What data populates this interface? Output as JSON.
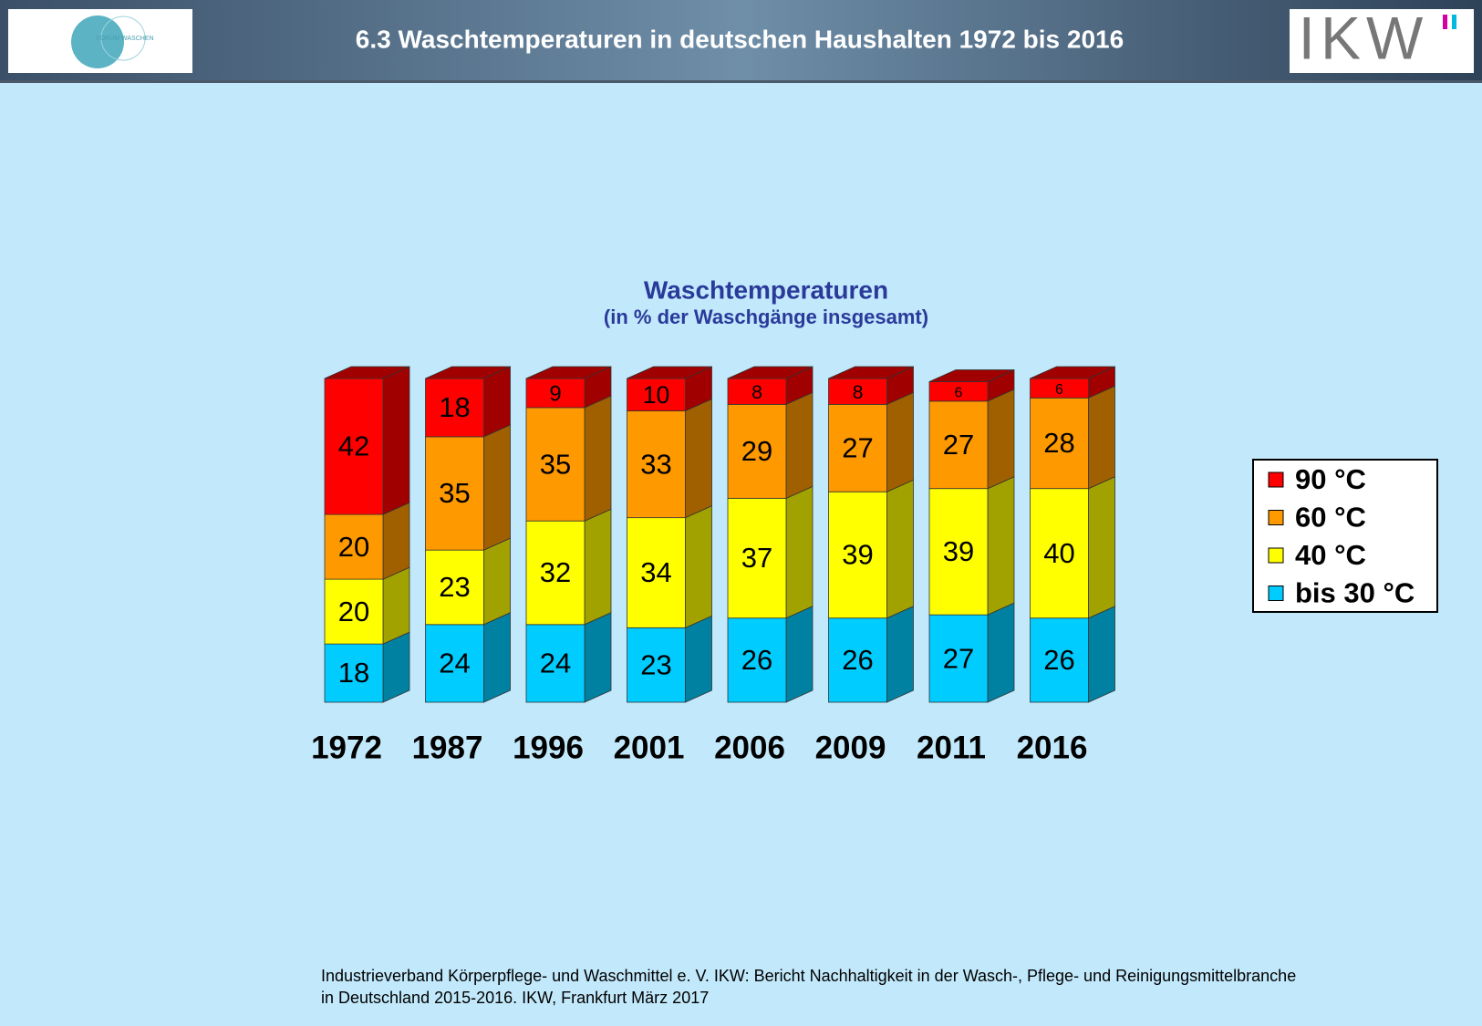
{
  "header": {
    "title": "6.3  Waschtemperaturen in deutschen Haushalten 1972 bis 2016",
    "logo_left": "FORUM WASCHEN",
    "logo_right": "IKW"
  },
  "chart_data": {
    "type": "bar",
    "stacked": true,
    "title": "Waschtemperaturen",
    "subtitle": "(in % der Waschgänge insgesamt)",
    "categories": [
      "1972",
      "1987",
      "1996",
      "2001",
      "2006",
      "2009",
      "2011",
      "2016"
    ],
    "series": [
      {
        "name": "bis 30 °C",
        "color": "#00ccff",
        "values": [
          18,
          24,
          24,
          23,
          26,
          26,
          27,
          26
        ]
      },
      {
        "name": "40 °C",
        "color": "#ffff00",
        "values": [
          20,
          23,
          32,
          34,
          37,
          39,
          39,
          40
        ]
      },
      {
        "name": "60 °C",
        "color": "#ff9900",
        "values": [
          20,
          35,
          35,
          33,
          29,
          27,
          27,
          28
        ]
      },
      {
        "name": "90 °C",
        "color": "#ff0000",
        "values": [
          42,
          18,
          9,
          10,
          8,
          8,
          6,
          6
        ]
      }
    ],
    "legend": "right"
  },
  "footer": {
    "lines": [
      "Industrieverband Körperpflege- und Waschmittel e. V. IKW: Bericht Nachhaltigkeit in der Wasch-, Pflege- und Reinigungsmittelbranche",
      "in Deutschland 2015-2016. IKW, Frankfurt März 2017"
    ]
  }
}
